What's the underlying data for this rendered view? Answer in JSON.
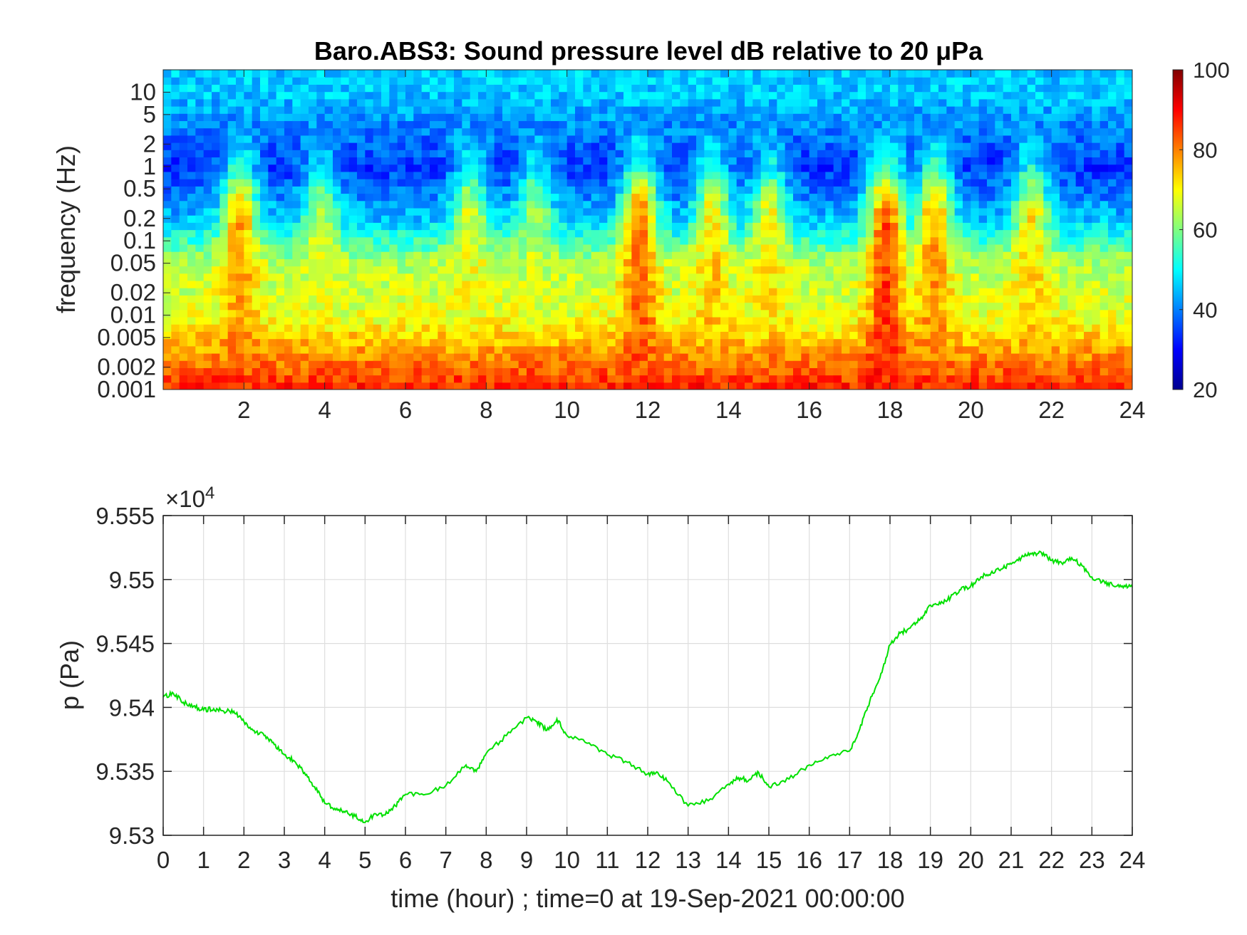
{
  "chart_data": [
    {
      "type": "heatmap",
      "title": "Baro.ABS3: Sound pressure level dB relative to 20 μPa",
      "xlabel": "",
      "ylabel": "frequency (Hz)",
      "xlim": [
        0,
        24
      ],
      "x_ticks": [
        "2",
        "4",
        "6",
        "8",
        "10",
        "12",
        "14",
        "16",
        "18",
        "20",
        "22",
        "24"
      ],
      "y_scale": "log",
      "ylim": [
        0.001,
        20
      ],
      "y_ticks": [
        "10",
        "5",
        "2",
        "1",
        "0.5",
        "0.2",
        "0.1",
        "0.05",
        "0.02",
        "0.01",
        "0.005",
        "0.002",
        "0.001"
      ],
      "colormap": "jet",
      "clim": [
        20,
        100
      ],
      "colorbar_ticks": [
        "100",
        "80",
        "60",
        "40",
        "20"
      ],
      "colorbar_position": "right",
      "bands": [
        {
          "freq": 10,
          "level": 46
        },
        {
          "freq": 1,
          "level": 34
        },
        {
          "freq": 0.2,
          "level": 45
        },
        {
          "freq": 0.05,
          "level": 64
        },
        {
          "freq": 0.01,
          "level": 68
        },
        {
          "freq": 0.002,
          "level": 82
        },
        {
          "freq": 0.001,
          "level": 88
        }
      ],
      "activity_episodes": [
        {
          "hour": 1.9,
          "level": 80
        },
        {
          "hour": 3.9,
          "level": 68
        },
        {
          "hour": 7.6,
          "level": 70
        },
        {
          "hour": 9.2,
          "level": 66
        },
        {
          "hour": 11.8,
          "level": 84
        },
        {
          "hour": 13.6,
          "level": 75
        },
        {
          "hour": 15.0,
          "level": 72
        },
        {
          "hour": 17.9,
          "level": 88
        },
        {
          "hour": 19.1,
          "level": 80
        },
        {
          "hour": 21.5,
          "level": 74
        }
      ]
    },
    {
      "type": "line",
      "xlabel": "time (hour) ; time=0 at 19-Sep-2021 00:00:00",
      "ylabel": "p (Pa)",
      "y_exponent": "×10",
      "y_exponent_power": "4",
      "xlim": [
        0,
        24
      ],
      "ylim": [
        9.53,
        9.555
      ],
      "x_ticks": [
        "0",
        "1",
        "2",
        "3",
        "4",
        "5",
        "6",
        "7",
        "8",
        "9",
        "10",
        "11",
        "12",
        "13",
        "14",
        "15",
        "16",
        "17",
        "18",
        "19",
        "20",
        "21",
        "22",
        "23",
        "24"
      ],
      "y_ticks": [
        "9.53",
        "9.535",
        "9.54",
        "9.545",
        "9.55",
        "9.555"
      ],
      "grid": true,
      "line_color": "#00e000",
      "series": [
        {
          "x": [
            0,
            0.25,
            0.5,
            0.75,
            1,
            1.25,
            1.5,
            1.75,
            2,
            2.25,
            2.5,
            2.75,
            3,
            3.25,
            3.5,
            3.75,
            4,
            4.25,
            4.5,
            4.75,
            5,
            5.25,
            5.5,
            5.75,
            6,
            6.5,
            7,
            7.5,
            7.75,
            8,
            8.5,
            9,
            9.25,
            9.5,
            9.75,
            10,
            10.5,
            11,
            11.5,
            12,
            12.25,
            12.5,
            13,
            13.5,
            14,
            14.25,
            14.5,
            14.75,
            15,
            15.5,
            16,
            16.5,
            17,
            17.25,
            17.5,
            17.75,
            18,
            18.25,
            18.5,
            18.75,
            19,
            19.25,
            19.5,
            19.75,
            20,
            20.25,
            20.5,
            20.75,
            21,
            21.25,
            21.5,
            21.75,
            22,
            22.25,
            22.5,
            22.75,
            23,
            23.25,
            23.5,
            23.75,
            24
          ],
          "y": [
            9.5408,
            9.5411,
            9.5404,
            9.5401,
            9.5398,
            9.5399,
            9.5397,
            9.5397,
            9.5389,
            9.5382,
            9.5378,
            9.5371,
            9.5363,
            9.5358,
            9.5349,
            9.5338,
            9.5325,
            9.5321,
            9.5318,
            9.5315,
            9.531,
            9.5317,
            9.5316,
            9.5323,
            9.5332,
            9.5332,
            9.5339,
            9.5355,
            9.535,
            9.5364,
            9.5378,
            9.5392,
            9.5389,
            9.5382,
            9.5391,
            9.5378,
            9.5372,
            9.5363,
            9.5357,
            9.5348,
            9.5349,
            9.5342,
            9.5323,
            9.5327,
            9.534,
            9.5345,
            9.5343,
            9.5349,
            9.5338,
            9.5344,
            9.5355,
            9.5362,
            9.5366,
            9.5383,
            9.5405,
            9.5423,
            9.5449,
            9.5458,
            9.5462,
            9.5469,
            9.548,
            9.5481,
            9.5486,
            9.5492,
            9.5495,
            9.5502,
            9.5505,
            9.5508,
            9.5512,
            9.5517,
            9.552,
            9.5521,
            9.5515,
            9.5513,
            9.5517,
            9.5511,
            9.5502,
            9.5498,
            9.5496,
            9.5495,
            9.5494
          ]
        }
      ]
    }
  ]
}
